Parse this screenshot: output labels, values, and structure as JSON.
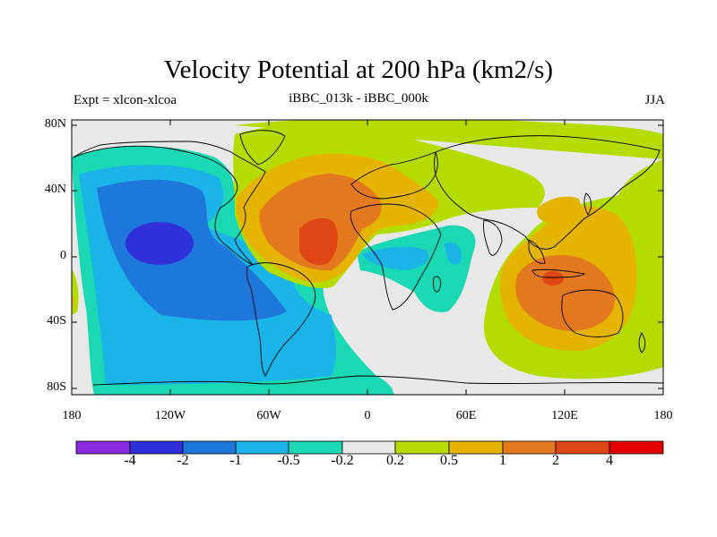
{
  "title": "Velocity Potential at 200 hPa (km2/s)",
  "left_string": "Expt = xlcon-xlcoa",
  "center_string": "iBBC_013k - iBBC_000k",
  "right_string": "JJA",
  "y_ticks": [
    "80N",
    "40N",
    "0",
    "40S",
    "80S"
  ],
  "x_ticks": [
    "180",
    "120W",
    "60W",
    "0",
    "60E",
    "120E",
    "180"
  ],
  "colorbar": {
    "labels": [
      "-4",
      "-2",
      "-1",
      "-0.5",
      "-0.2",
      "0.2",
      "0.5",
      "1",
      "2",
      "4"
    ],
    "colors": [
      "#8a2be2",
      "#3030d8",
      "#1e78dc",
      "#1ab4e8",
      "#1ad8b4",
      "#e8e8e8",
      "#b4dc00",
      "#e4b400",
      "#e4781e",
      "#e04614",
      "#e40000"
    ]
  },
  "colors": {
    "land_outline": "#000000",
    "background_neutral": "#e8e8e8"
  }
}
